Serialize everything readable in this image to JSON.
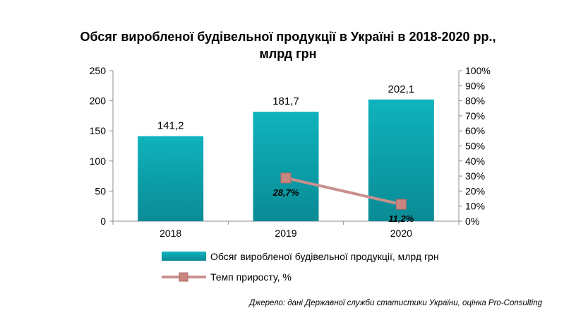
{
  "title_line1": "Обсяг виробленої будівельної продукції в Україні в 2018-2020 рр.,",
  "title_line2": "млрд грн",
  "source": "Джерело: дані Державної служби статистики України, оцінка Pro-Consulting",
  "chart_data": {
    "type": "bar",
    "categories": [
      "2018",
      "2019",
      "2020"
    ],
    "series": [
      {
        "name": "Обсяг виробленої будівельної продукції, млрд грн",
        "kind": "bar",
        "axis": "left",
        "values": [
          141.2,
          181.7,
          202.1
        ],
        "labels": [
          "141,2",
          "181,7",
          "202,1"
        ],
        "color": "#0a9aa6"
      },
      {
        "name": "Темп приросту, %",
        "kind": "line",
        "axis": "right",
        "x": [
          "2019",
          "2020"
        ],
        "values": [
          28.7,
          11.2
        ],
        "labels": [
          "28,7%",
          "11,2%"
        ],
        "color": "#c0504d"
      }
    ],
    "ylim": [
      0,
      250
    ],
    "yticks": [
      "0",
      "50",
      "100",
      "150",
      "200",
      "250"
    ],
    "y2lim": [
      0,
      100
    ],
    "y2ticks": [
      "0%",
      "10%",
      "20%",
      "30%",
      "40%",
      "50%",
      "60%",
      "70%",
      "80%",
      "90%",
      "100%"
    ],
    "legend": "bottom",
    "grid": false
  }
}
